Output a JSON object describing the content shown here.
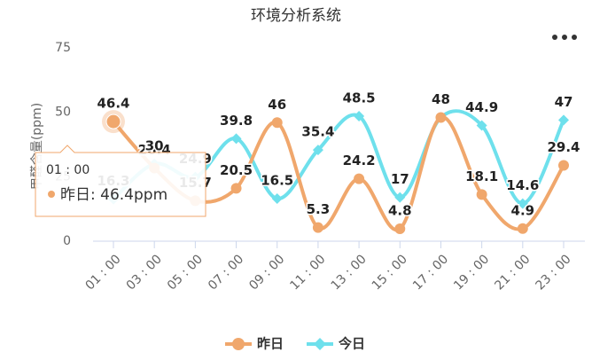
{
  "chart_data": {
    "type": "line",
    "title": "环境分析系统",
    "y_label": "甲醛含量(ppm)",
    "categories": [
      "01 : 00",
      "03 : 00",
      "05 : 00",
      "07 : 00",
      "09 : 00",
      "11 : 00",
      "13 : 00",
      "15 : 00",
      "17 : 00",
      "19 : 00",
      "21 : 00",
      "23 : 00"
    ],
    "series": [
      {
        "name": "昨日",
        "color": "#f0a76c",
        "marker": "circle",
        "values": [
          46.4,
          28.4,
          15.7,
          20.5,
          46,
          5.3,
          24.2,
          4.8,
          48,
          18.1,
          4.9,
          29.4
        ]
      },
      {
        "name": "今日",
        "color": "#6ee0ec",
        "marker": "diamond",
        "values": [
          16.3,
          30,
          24.9,
          39.8,
          16.5,
          35.4,
          48.5,
          17,
          48,
          44.9,
          14.6,
          47
        ]
      }
    ],
    "ylim": [
      0,
      75
    ],
    "yticks": [
      0,
      25,
      50,
      75
    ],
    "smooth": true,
    "legend": "bottom",
    "tooltip": {
      "title": "01 : 00",
      "text": "昨日: 46.4ppm"
    }
  }
}
